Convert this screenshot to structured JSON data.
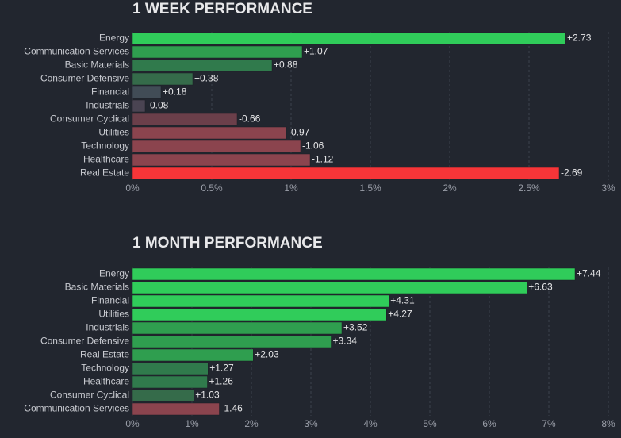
{
  "chart_data": [
    {
      "type": "hbar",
      "title": "1 WEEK PERFORMANCE",
      "categories": [
        "Energy",
        "Communication Services",
        "Basic Materials",
        "Consumer Defensive",
        "Financial",
        "Industrials",
        "Consumer Cyclical",
        "Utilities",
        "Technology",
        "Healthcare",
        "Real Estate"
      ],
      "values": [
        2.73,
        1.07,
        0.88,
        0.38,
        0.18,
        -0.08,
        -0.66,
        -0.97,
        -1.06,
        -1.12,
        -2.69
      ],
      "value_labels": [
        "+2.73",
        "+1.07",
        "+0.88",
        "+0.38",
        "+0.18",
        "-0.08",
        "-0.66",
        "-0.97",
        "-1.06",
        "-1.12",
        "-2.69"
      ],
      "colors": [
        "#30cc5a",
        "#2f9e4f",
        "#307a4c",
        "#356b4a",
        "#414c56",
        "#4a4452",
        "#6b3f4a",
        "#8b444e",
        "#8b444e",
        "#8b444e",
        "#f63538"
      ],
      "xlim": [
        0,
        3
      ],
      "xticks": [
        {
          "value": 0,
          "label": "0%"
        },
        {
          "value": 0.5,
          "label": "0.5%"
        },
        {
          "value": 1,
          "label": "1%"
        },
        {
          "value": 1.5,
          "label": "1.5%"
        },
        {
          "value": 2,
          "label": "2%"
        },
        {
          "value": 2.5,
          "label": "2.5%"
        },
        {
          "value": 3,
          "label": "3%"
        }
      ],
      "grid": true
    },
    {
      "type": "hbar",
      "title": "1 MONTH PERFORMANCE",
      "categories": [
        "Energy",
        "Basic Materials",
        "Financial",
        "Utilities",
        "Industrials",
        "Consumer Defensive",
        "Real Estate",
        "Technology",
        "Healthcare",
        "Consumer Cyclical",
        "Communication Services"
      ],
      "values": [
        7.44,
        6.63,
        4.31,
        4.27,
        3.52,
        3.34,
        2.03,
        1.27,
        1.26,
        1.03,
        -1.46
      ],
      "value_labels": [
        "+7.44",
        "+6.63",
        "+4.31",
        "+4.27",
        "+3.52",
        "+3.34",
        "+2.03",
        "+1.27",
        "+1.26",
        "+1.03",
        "-1.46"
      ],
      "colors": [
        "#30cc5a",
        "#30cc5a",
        "#30cc5a",
        "#30cc5a",
        "#2f9e4f",
        "#2f9e4f",
        "#2f9e4f",
        "#307a4c",
        "#307a4c",
        "#356b4a",
        "#8b444e"
      ],
      "xlim": [
        0,
        8
      ],
      "xticks": [
        {
          "value": 0,
          "label": "0%"
        },
        {
          "value": 1,
          "label": "1%"
        },
        {
          "value": 2,
          "label": "2%"
        },
        {
          "value": 3,
          "label": "3%"
        },
        {
          "value": 4,
          "label": "4%"
        },
        {
          "value": 5,
          "label": "5%"
        },
        {
          "value": 6,
          "label": "6%"
        },
        {
          "value": 7,
          "label": "7%"
        },
        {
          "value": 8,
          "label": "8%"
        }
      ],
      "grid": true
    }
  ]
}
